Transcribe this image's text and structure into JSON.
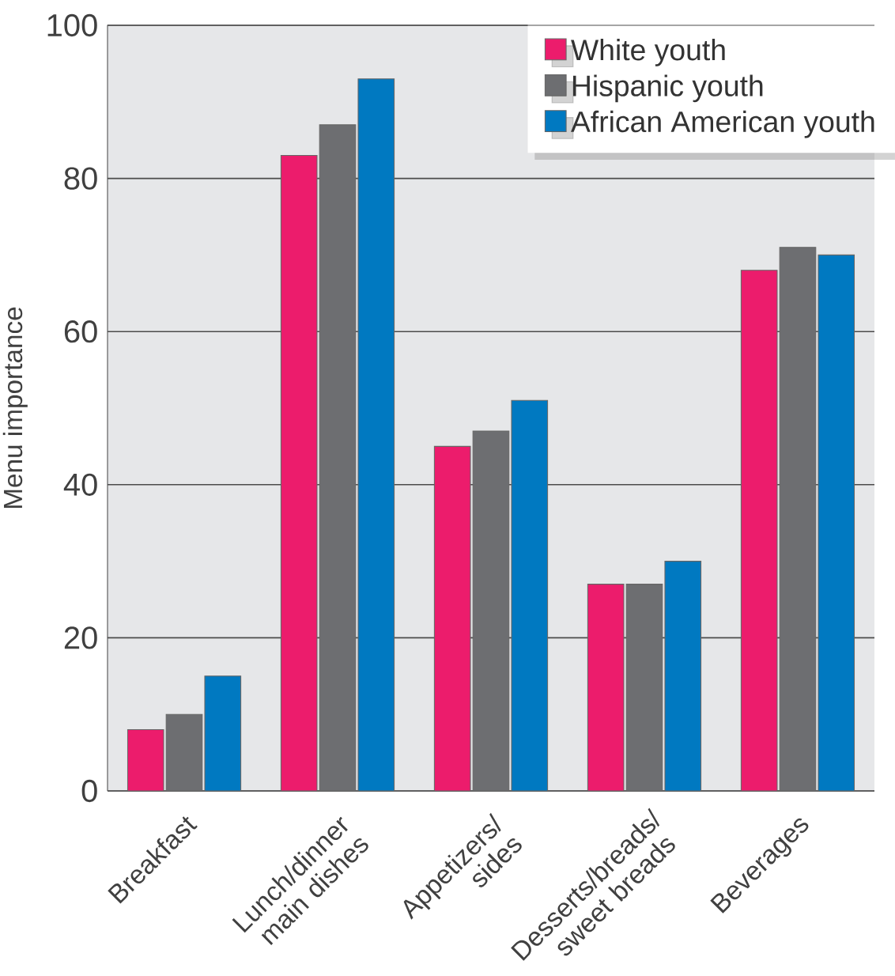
{
  "chart_data": {
    "type": "bar",
    "ylabel": "Menu importance",
    "categories": [
      "Breakfast",
      "Lunch/dinner main dishes",
      "Appetizers/ sides",
      "Desserts/breads/ sweet breads",
      "Beverages"
    ],
    "series": [
      {
        "name": "White youth",
        "color": "#ec1c6c",
        "values": [
          8,
          83,
          45,
          27,
          68
        ]
      },
      {
        "name": "Hispanic youth",
        "color": "#6d6e71",
        "values": [
          10,
          87,
          47,
          27,
          71
        ]
      },
      {
        "name": "African American youth",
        "color": "#0079c1",
        "values": [
          15,
          93,
          51,
          30,
          70
        ]
      }
    ],
    "ylim": [
      0,
      100
    ],
    "yticks": [
      0,
      20,
      40,
      60,
      80,
      100
    ],
    "grid": "y",
    "legend": "top right"
  }
}
